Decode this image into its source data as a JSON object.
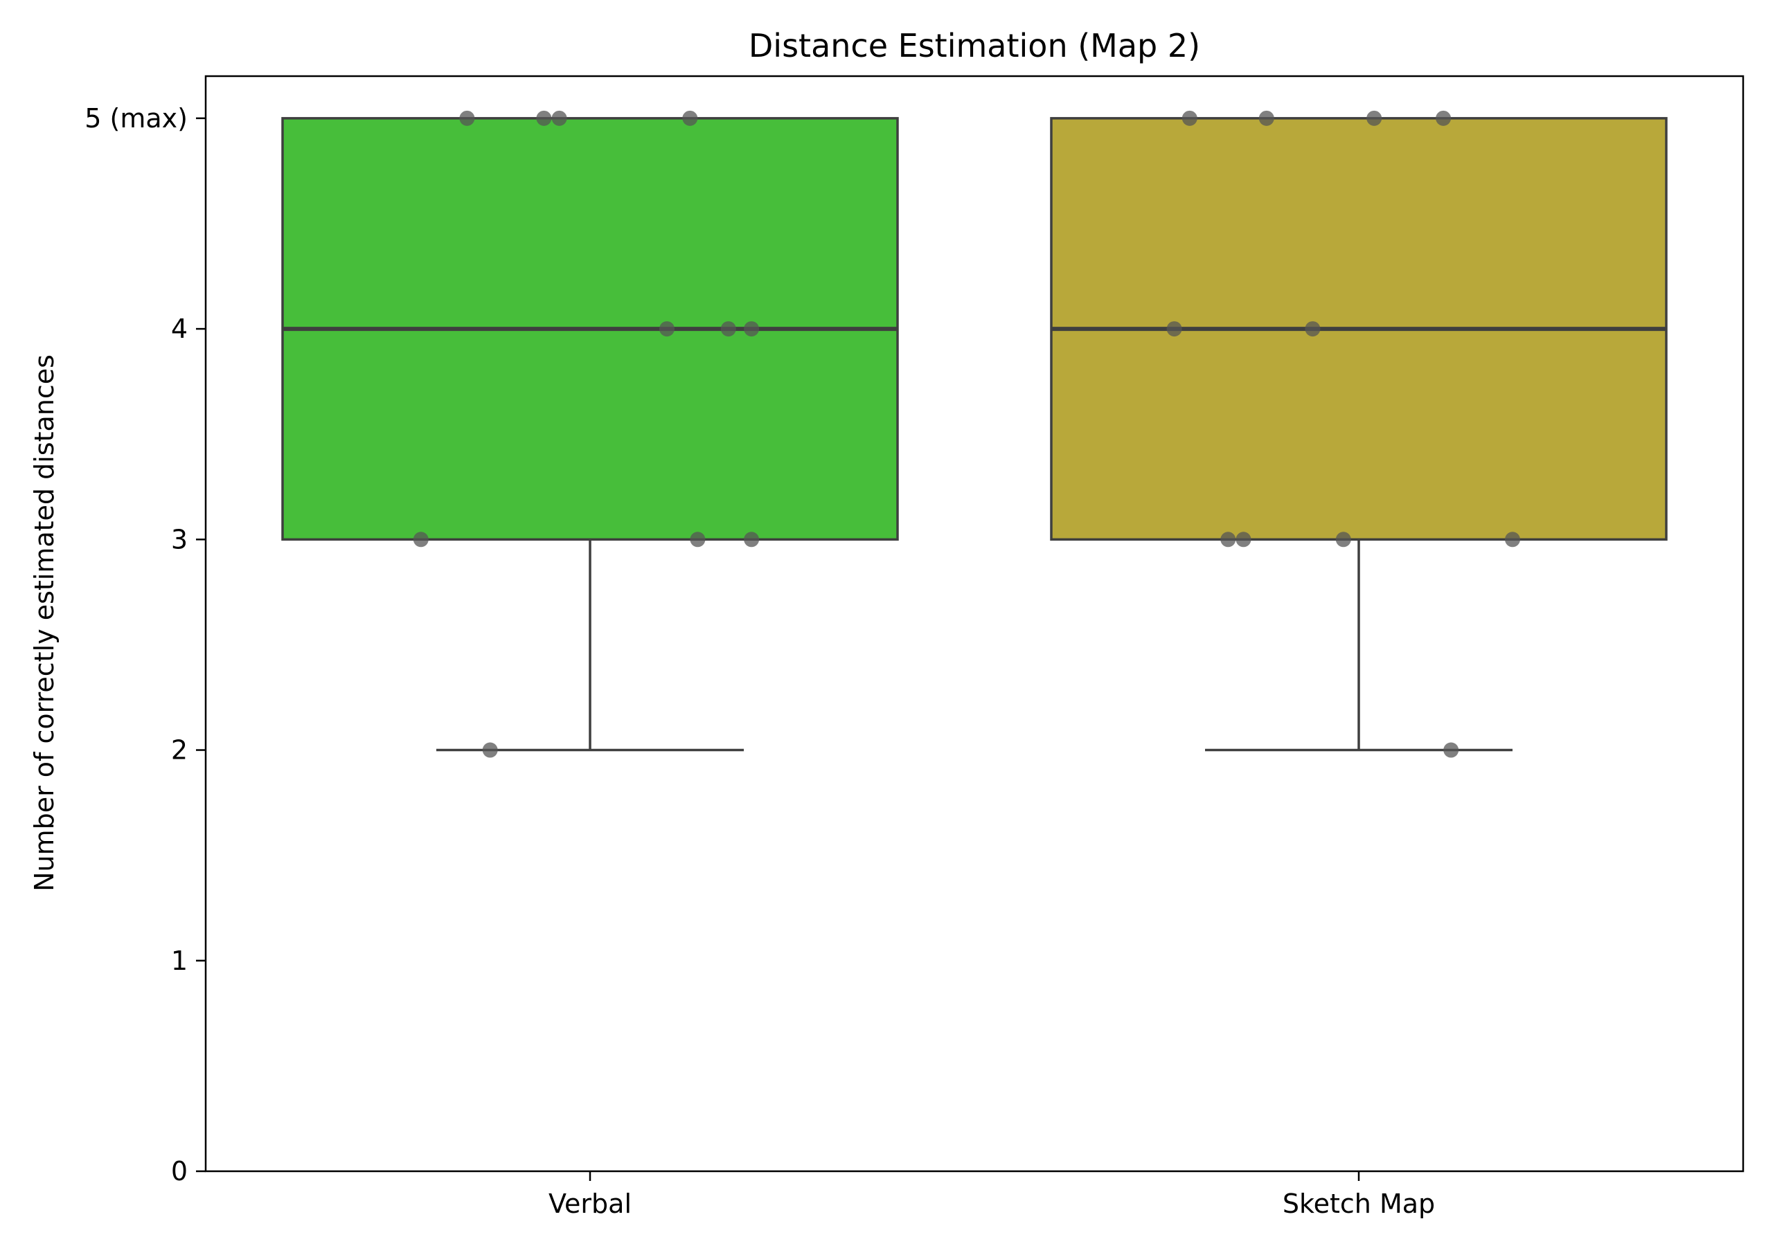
{
  "chart_data": {
    "type": "box",
    "title": "Distance Estimation (Map 2)",
    "xlabel": "",
    "ylabel": "Number of correctly estimated distances",
    "ylim": [
      0,
      5.2
    ],
    "yticks": [
      0,
      1,
      2,
      3,
      4,
      5
    ],
    "ytick_labels": [
      "0",
      "1",
      "2",
      "3",
      "4",
      "5 (max)"
    ],
    "categories": [
      "Verbal",
      "Sketch Map"
    ],
    "grid": false,
    "series": [
      {
        "category": "Verbal",
        "color": "#47be3a",
        "box": {
          "whisker_low": 2,
          "q1": 3,
          "median": 4,
          "q3": 5,
          "whisker_high": 5
        },
        "points": [
          {
            "y": 5,
            "jitter": -0.16
          },
          {
            "y": 5,
            "jitter": -0.06
          },
          {
            "y": 5,
            "jitter": -0.04
          },
          {
            "y": 5,
            "jitter": 0.13
          },
          {
            "y": 4,
            "jitter": 0.1
          },
          {
            "y": 4,
            "jitter": 0.18
          },
          {
            "y": 4,
            "jitter": 0.21
          },
          {
            "y": 3,
            "jitter": -0.22
          },
          {
            "y": 3,
            "jitter": 0.14
          },
          {
            "y": 3,
            "jitter": 0.21
          },
          {
            "y": 2,
            "jitter": -0.13
          }
        ]
      },
      {
        "category": "Sketch Map",
        "color": "#b8a83a",
        "box": {
          "whisker_low": 2,
          "q1": 3,
          "median": 4,
          "q3": 5,
          "whisker_high": 5
        },
        "points": [
          {
            "y": 5,
            "jitter": -0.22
          },
          {
            "y": 5,
            "jitter": -0.12
          },
          {
            "y": 5,
            "jitter": 0.02
          },
          {
            "y": 5,
            "jitter": 0.11
          },
          {
            "y": 4,
            "jitter": -0.24
          },
          {
            "y": 4,
            "jitter": -0.06
          },
          {
            "y": 3,
            "jitter": -0.17
          },
          {
            "y": 3,
            "jitter": -0.15
          },
          {
            "y": 3,
            "jitter": -0.02
          },
          {
            "y": 3,
            "jitter": 0.2
          },
          {
            "y": 2,
            "jitter": 0.12
          }
        ]
      }
    ],
    "point_color": "#555555",
    "line_color": "#3f3f3f"
  }
}
